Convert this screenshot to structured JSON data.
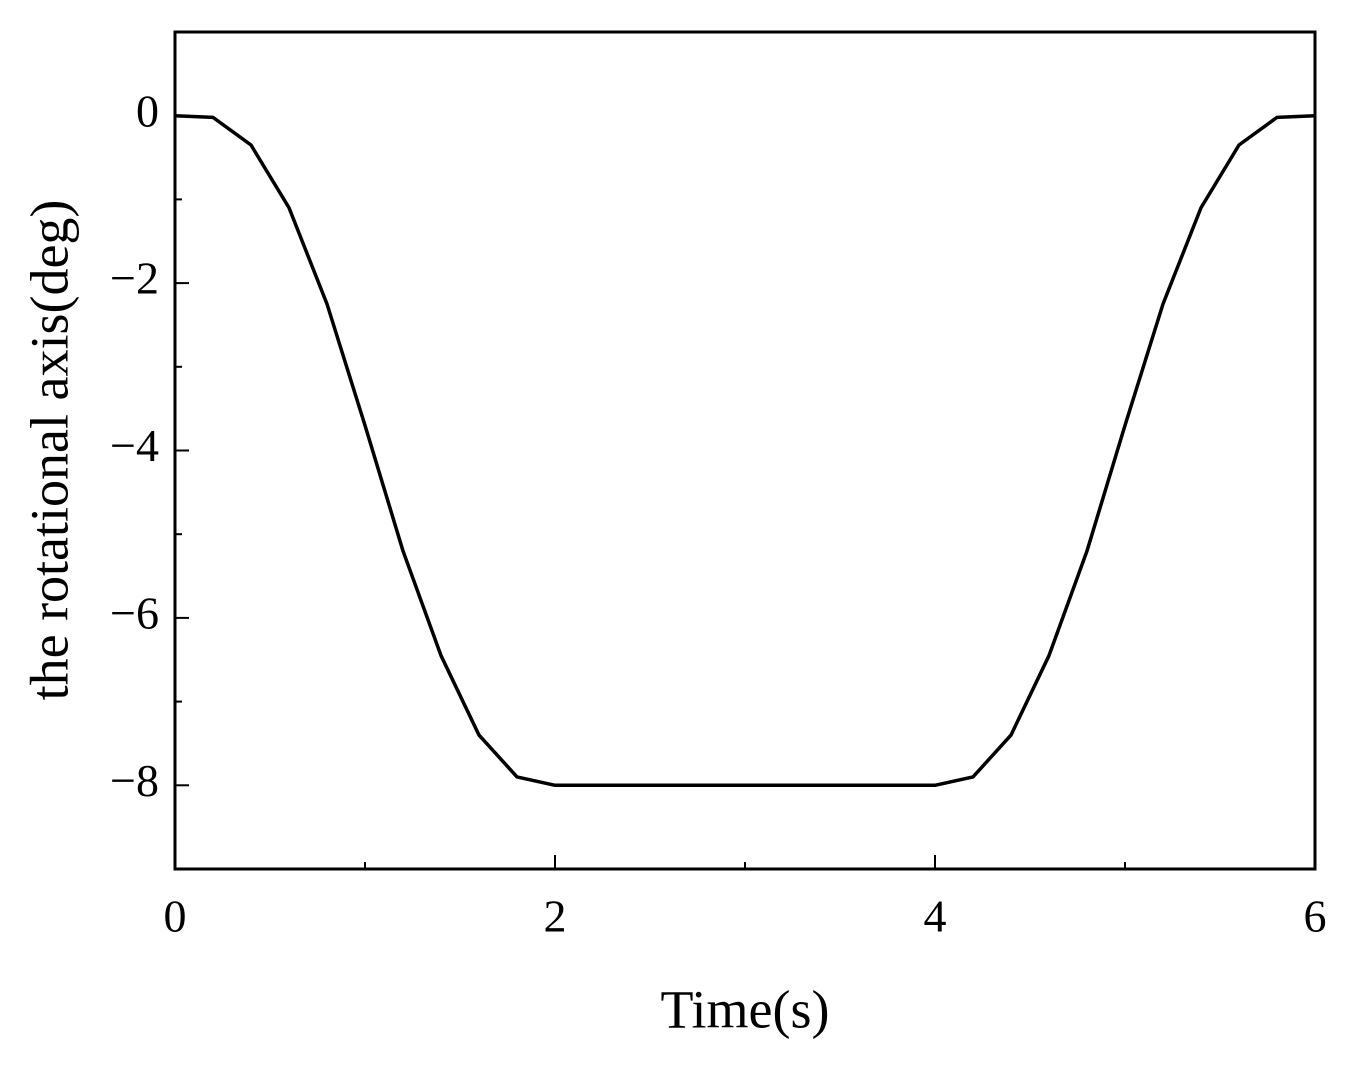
{
  "chart_data": {
    "type": "line",
    "x_label": "Time(s)",
    "y_label": "the rotational axis(deg)",
    "x": [
      0,
      0.2,
      0.4,
      0.6,
      0.8,
      1.0,
      1.2,
      1.4,
      1.6,
      1.8,
      2.0,
      2.5,
      3.0,
      3.5,
      4.0,
      4.2,
      4.4,
      4.6,
      4.8,
      5.0,
      5.2,
      5.4,
      5.6,
      5.8,
      6.0
    ],
    "series": [
      {
        "color": "#000000",
        "values": [
          0,
          -0.02,
          -0.35,
          -1.1,
          -2.25,
          -3.7,
          -5.2,
          -6.45,
          -7.4,
          -7.9,
          -8,
          -8,
          -8,
          -8,
          -8,
          -7.9,
          -7.4,
          -6.45,
          -5.2,
          -3.7,
          -2.25,
          -1.1,
          -0.35,
          -0.02,
          0
        ]
      }
    ],
    "xlim": [
      0,
      6
    ],
    "xticks": [
      0,
      2,
      4,
      6
    ],
    "xminorticks": [
      1,
      3,
      5
    ],
    "ylim": [
      -9,
      1
    ],
    "yticks": [
      0,
      {
        "value": -2,
        "label": "−2"
      },
      {
        "value": -4,
        "label": "−4"
      },
      {
        "value": -6,
        "label": "−6"
      },
      {
        "value": -8,
        "label": "−8"
      }
    ],
    "yminorticks": [
      -1,
      -3,
      -5,
      -7
    ],
    "grid": false
  }
}
